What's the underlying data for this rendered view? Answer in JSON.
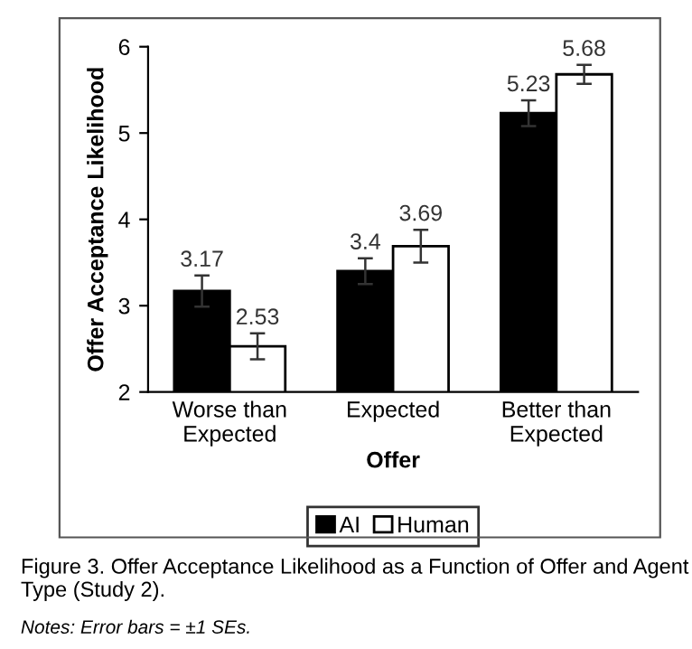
{
  "chart_data": {
    "type": "bar",
    "xlabel": "Offer",
    "ylabel": "Offer Acceptance Likelihood",
    "categories": [
      "Worse than\nExpected",
      "Expected",
      "Better than\nExpected"
    ],
    "series": [
      {
        "name": "AI",
        "color": "#000000",
        "values": [
          3.17,
          3.4,
          5.23
        ],
        "errors": [
          0.18,
          0.15,
          0.15
        ]
      },
      {
        "name": "Human",
        "color": "#ffffff",
        "values": [
          2.53,
          3.69,
          5.68
        ],
        "errors": [
          0.15,
          0.19,
          0.11
        ]
      }
    ],
    "ylim": [
      2,
      6
    ],
    "yticks": [
      2,
      3,
      4,
      5,
      6
    ],
    "grid": false,
    "legend": "bottom",
    "data_labels": true,
    "annotations": [
      "Figure 3. Offer Acceptance Likelihood as a Function of Offer and Agent Type (Study 2).",
      "Notes: Error bars = ±1 SEs."
    ]
  }
}
